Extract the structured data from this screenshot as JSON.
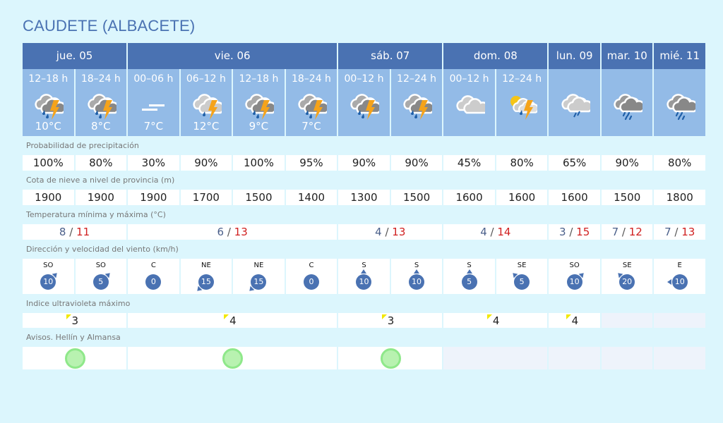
{
  "title": "CAUDETE (ALBACETE)",
  "days": [
    {
      "label": "jue. 05",
      "span": 2
    },
    {
      "label": "vie. 06",
      "span": 4
    },
    {
      "label": "sáb. 07",
      "span": 2
    },
    {
      "label": "dom. 08",
      "span": 2
    },
    {
      "label": "lun. 09",
      "span": 1
    },
    {
      "label": "mar. 10",
      "span": 1
    },
    {
      "label": "mié. 11",
      "span": 1
    }
  ],
  "periods": [
    {
      "label": "12–18 h",
      "icon": "storm-rain-icon",
      "temp": "10°C"
    },
    {
      "label": "18–24 h",
      "icon": "storm-rain-icon",
      "temp": "8°C"
    },
    {
      "label": "00–06 h",
      "icon": "fog-icon",
      "temp": "7°C"
    },
    {
      "label": "06–12 h",
      "icon": "storm-light-icon",
      "temp": "12°C"
    },
    {
      "label": "12–18 h",
      "icon": "storm-rain-icon",
      "temp": "9°C"
    },
    {
      "label": "18–24 h",
      "icon": "storm-rain-icon",
      "temp": "7°C"
    },
    {
      "label": "00–12 h",
      "icon": "storm-rain-icon",
      "temp": ""
    },
    {
      "label": "12–24 h",
      "icon": "storm-rain-icon",
      "temp": ""
    },
    {
      "label": "00–12 h",
      "icon": "cloudy-icon",
      "temp": ""
    },
    {
      "label": "12–24 h",
      "icon": "sun-storm-icon",
      "temp": ""
    },
    {
      "label": "",
      "icon": "light-rain-icon",
      "temp": ""
    },
    {
      "label": "",
      "icon": "rain-icon",
      "temp": ""
    },
    {
      "label": "",
      "icon": "rain-icon",
      "temp": ""
    }
  ],
  "precip": {
    "label": "Probabilidad de precipitación",
    "values": [
      "100%",
      "80%",
      "30%",
      "90%",
      "100%",
      "95%",
      "90%",
      "90%",
      "45%",
      "80%",
      "65%",
      "90%",
      "80%"
    ]
  },
  "snow": {
    "label": "Cota de nieve a nivel de provincia (m)",
    "values": [
      "1900",
      "1900",
      "1900",
      "1700",
      "1500",
      "1400",
      "1300",
      "1500",
      "1600",
      "1600",
      "1600",
      "1500",
      "1800"
    ]
  },
  "temps": {
    "label": "Temperatura mínima y máxima (°C)",
    "values": [
      {
        "min": "8",
        "max": "11",
        "span": 2
      },
      {
        "min": "6",
        "max": "13",
        "span": 4
      },
      {
        "min": "4",
        "max": "13",
        "span": 2
      },
      {
        "min": "4",
        "max": "14",
        "span": 2
      },
      {
        "min": "3",
        "max": "15",
        "span": 1
      },
      {
        "min": "7",
        "max": "12",
        "span": 1
      },
      {
        "min": "7",
        "max": "13",
        "span": 1
      }
    ]
  },
  "wind": {
    "label": "Dirección y velocidad del viento (km/h)",
    "values": [
      {
        "dir": "SO",
        "speed": "10",
        "deg": 45
      },
      {
        "dir": "SO",
        "speed": "5",
        "deg": 45
      },
      {
        "dir": "C",
        "speed": "0",
        "deg": null
      },
      {
        "dir": "NE",
        "speed": "15",
        "deg": 225
      },
      {
        "dir": "NE",
        "speed": "15",
        "deg": 225
      },
      {
        "dir": "C",
        "speed": "0",
        "deg": null
      },
      {
        "dir": "S",
        "speed": "10",
        "deg": 0
      },
      {
        "dir": "S",
        "speed": "10",
        "deg": 0
      },
      {
        "dir": "S",
        "speed": "5",
        "deg": 0
      },
      {
        "dir": "SE",
        "speed": "5",
        "deg": 315
      },
      {
        "dir": "SO",
        "speed": "10",
        "deg": 45
      },
      {
        "dir": "SE",
        "speed": "20",
        "deg": 315
      },
      {
        "dir": "E",
        "speed": "10",
        "deg": 270
      }
    ]
  },
  "uv": {
    "label": "Indice ultravioleta máximo",
    "values": [
      {
        "value": "3",
        "span": 2
      },
      {
        "value": "4",
        "span": 4
      },
      {
        "value": "3",
        "span": 2
      },
      {
        "value": "4",
        "span": 2
      },
      {
        "value": "4",
        "span": 1
      },
      {
        "value": "",
        "span": 1
      },
      {
        "value": "",
        "span": 1
      }
    ]
  },
  "avisos": {
    "label": "Avisos. Hellín y Almansa",
    "values": [
      {
        "level": "green",
        "span": 2
      },
      {
        "level": "green",
        "span": 4
      },
      {
        "level": "green",
        "span": 2
      },
      {
        "level": "",
        "span": 2
      },
      {
        "level": "",
        "span": 1
      },
      {
        "level": "",
        "span": 1
      },
      {
        "level": "",
        "span": 1
      }
    ]
  },
  "colors": {
    "header": "#4a72b2",
    "period": "#93bbe7",
    "background": "#dcf6fd",
    "tmax": "#d02020",
    "bolt": "#f5a31a",
    "drop": "#1f5fa8"
  }
}
